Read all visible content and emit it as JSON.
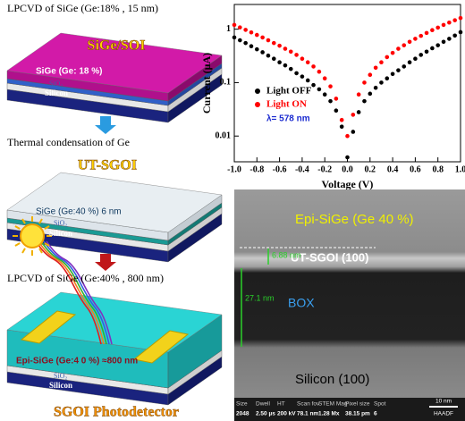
{
  "chart_data": {
    "type": "scatter",
    "x_label": "Voltage (V)",
    "y_label": "Current (μA)",
    "annotation": "λ= 578 nm",
    "log_y": true,
    "legend": "left",
    "x": [
      -1.0,
      -0.95,
      -0.9,
      -0.85,
      -0.8,
      -0.75,
      -0.7,
      -0.65,
      -0.6,
      -0.55,
      -0.5,
      -0.45,
      -0.4,
      -0.35,
      -0.3,
      -0.25,
      -0.2,
      -0.15,
      -0.1,
      -0.05,
      0.0,
      0.05,
      0.1,
      0.15,
      0.2,
      0.25,
      0.3,
      0.35,
      0.4,
      0.45,
      0.5,
      0.55,
      0.6,
      0.65,
      0.7,
      0.75,
      0.8,
      0.85,
      0.9,
      0.95,
      1.0
    ],
    "series": [
      {
        "name": "Light OFF",
        "color": "#000000",
        "values": [
          0.7,
          0.62,
          0.55,
          0.48,
          0.42,
          0.37,
          0.32,
          0.28,
          0.24,
          0.21,
          0.18,
          0.15,
          0.13,
          0.11,
          0.09,
          0.075,
          0.06,
          0.045,
          0.03,
          0.015,
          0.004,
          0.012,
          0.028,
          0.045,
          0.062,
          0.08,
          0.1,
          0.12,
          0.145,
          0.17,
          0.2,
          0.24,
          0.28,
          0.33,
          0.38,
          0.44,
          0.5,
          0.58,
          0.66,
          0.76,
          0.88
        ]
      },
      {
        "name": "Light ON",
        "color": "#ff0000",
        "values": [
          1.2,
          1.08,
          0.97,
          0.87,
          0.78,
          0.7,
          0.62,
          0.55,
          0.49,
          0.43,
          0.38,
          0.33,
          0.28,
          0.24,
          0.2,
          0.16,
          0.12,
          0.085,
          0.05,
          0.02,
          0.01,
          0.025,
          0.06,
          0.1,
          0.14,
          0.19,
          0.24,
          0.3,
          0.36,
          0.43,
          0.5,
          0.58,
          0.66,
          0.75,
          0.85,
          0.96,
          1.07,
          1.2,
          1.33,
          1.47,
          1.62
        ]
      }
    ],
    "xlim": [
      -1.0,
      1.0
    ],
    "xticks": [
      {
        "value": -1.0,
        "label": "-1.0"
      },
      {
        "value": -0.8,
        "label": "-0.8"
      },
      {
        "value": -0.6,
        "label": "-0.6"
      },
      {
        "value": -0.4,
        "label": "-0.4"
      },
      {
        "value": -0.2,
        "label": "-0.2"
      },
      {
        "value": 0.0,
        "label": "0.0"
      },
      {
        "value": 0.2,
        "label": "0.2"
      },
      {
        "value": 0.4,
        "label": "0.4"
      },
      {
        "value": 0.6,
        "label": "0.6"
      },
      {
        "value": 0.8,
        "label": "0.8"
      },
      {
        "value": 1.0,
        "label": "1.0"
      }
    ],
    "ylim": [
      0.0033,
      2.9
    ],
    "yticks": [
      0.01,
      0.1,
      1
    ]
  },
  "schematic": {
    "stacks": [
      {
        "caption": "LPCVD of SiGe (Ge:18% , 15 nm)",
        "title": "SiGe/SOI",
        "layer": "SiGe (Ge: 18 %)",
        "oxide": "SiO₂",
        "substrate": "Silicon"
      },
      {
        "caption": "Thermal condensation of Ge",
        "title": "UT-SGOI",
        "layer": "SiGe (Ge:40 %)  6 nm",
        "oxide": "SiO₂",
        "substrate": "Silicon"
      },
      {
        "caption": "LPCVD of SiGe (Ge:40% , 800 nm)",
        "title": "SGOI Photodetector",
        "layer": "Epi-SiGe (Ge:4 0 %) ≈800 nm",
        "oxide": "SiO₂",
        "substrate": "Silicon"
      }
    ]
  },
  "micrograph": {
    "labels": [
      "Epi-SiGe (Ge 40 %)",
      "UT-SGOI (100)",
      "BOX",
      "Silicon (100)"
    ],
    "thickness_marks": [
      "6.88 nm",
      "27.1 nm"
    ],
    "info_bar": {
      "headers": [
        "Size",
        "Dwell",
        "HT",
        "Scan fov",
        "STEM Mag",
        "Pixel size",
        "Spot"
      ],
      "values": [
        "2048",
        "2.50 µs",
        "200 kV",
        "78.1 nm",
        "1.28 Mx",
        "38.15 pm",
        "6"
      ],
      "scale": "10 nm",
      "detector": "HAADF"
    }
  }
}
